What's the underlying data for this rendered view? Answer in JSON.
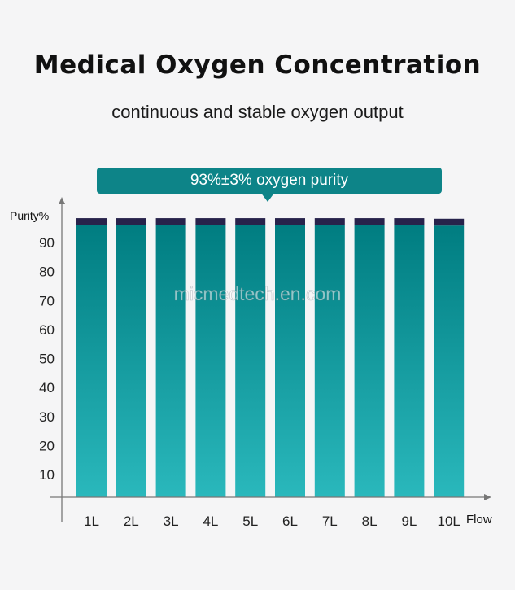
{
  "header": {
    "title": "Medical Oxygen Concentration",
    "subtitle": "continuous and stable oxygen output"
  },
  "banner": {
    "text": "93%±3% oxygen purity"
  },
  "watermark": "micmedtech.en.com",
  "colors": {
    "bar_top": "#007d81",
    "bar_bottom": "#2ab8bc",
    "cap": "#27234b",
    "banner": "#0d8488",
    "axis": "#777777"
  },
  "chart_data": {
    "type": "bar",
    "title": "Medical Oxygen Concentration",
    "ylabel": "Purity%",
    "xlabel": "Flow",
    "categories": [
      "1L",
      "2L",
      "3L",
      "4L",
      "5L",
      "6L",
      "7L",
      "8L",
      "9L",
      "10L"
    ],
    "yticks": [
      10,
      20,
      30,
      40,
      50,
      60,
      70,
      80,
      90
    ],
    "ylim": [
      2,
      100
    ],
    "series": [
      {
        "name": "Purity",
        "values": [
          96,
          96,
          96,
          96,
          96,
          96,
          96,
          96,
          96,
          95.8
        ]
      },
      {
        "name": "Upper band",
        "values": [
          98.4,
          98.4,
          98.4,
          98.4,
          98.4,
          98.4,
          98.4,
          98.4,
          98.4,
          98.2
        ]
      }
    ],
    "grid": false
  }
}
